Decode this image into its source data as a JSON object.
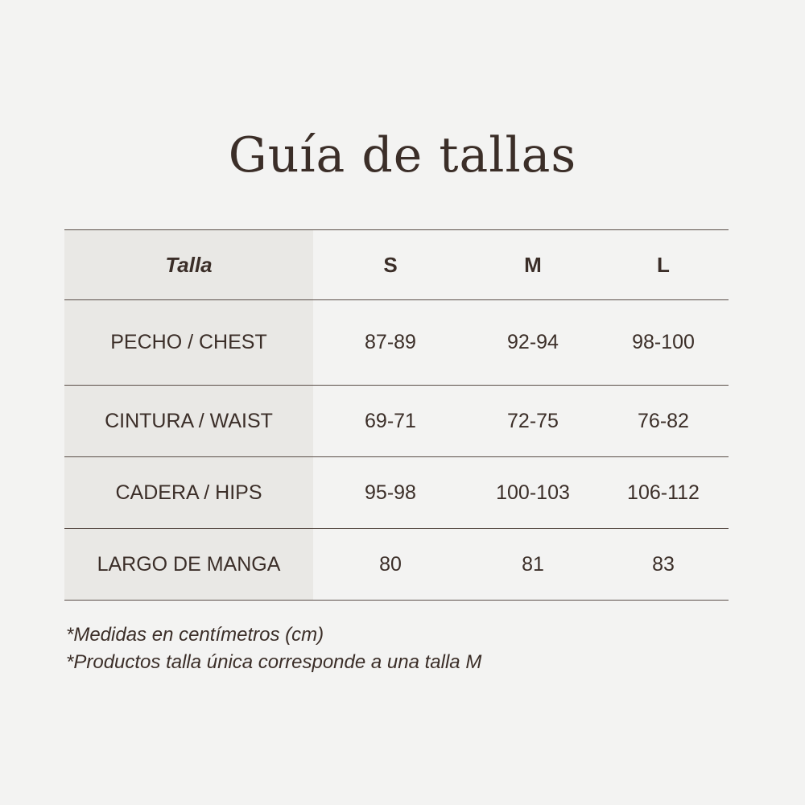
{
  "title": "Guía de tallas",
  "colors": {
    "background": "#f3f3f2",
    "label_column": "#e9e8e5",
    "text": "#3b2e28"
  },
  "table": {
    "headers": [
      "Talla",
      "S",
      "M",
      "L"
    ],
    "rows": [
      {
        "label": "PECHO / CHEST",
        "values": [
          "87-89",
          "92-94",
          "98-100"
        ]
      },
      {
        "label": "CINTURA / WAIST",
        "values": [
          "69-71",
          "72-75",
          "76-82"
        ]
      },
      {
        "label": "CADERA / HIPS",
        "values": [
          "95-98",
          "100-103",
          "106-112"
        ]
      },
      {
        "label": "LARGO DE MANGA",
        "values": [
          "80",
          "81",
          "83"
        ]
      }
    ]
  },
  "notes": [
    "*Medidas en centímetros (cm)",
    "*Productos talla única corresponde a una talla M"
  ]
}
